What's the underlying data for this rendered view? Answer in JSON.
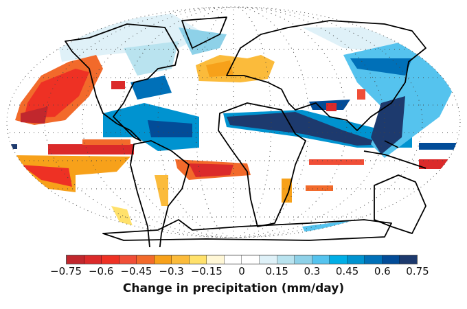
{
  "map": {
    "projection": "Robinson",
    "coastline_color": "#000000",
    "graticule": "dotted"
  },
  "colorbar": {
    "label": "Change in precipitation (mm/day)",
    "range": [
      -0.75,
      0.75
    ],
    "ticks": [
      "−0.75",
      "−0.6",
      "−0.45",
      "−0.3",
      "−0.15",
      "0",
      "0.15",
      "0.3",
      "0.45",
      "0.6",
      "0.75"
    ],
    "bin_colors": [
      "#c1272d",
      "#db2a2a",
      "#ee3124",
      "#f04e37",
      "#f26a2b",
      "#f7a11a",
      "#fbbb3b",
      "#ffe16b",
      "#fff7d6",
      "#ffffff",
      "#ffffff",
      "#dff1f8",
      "#b9e3ef",
      "#8ed1e8",
      "#55c3ee",
      "#00aee6",
      "#0093d0",
      "#0070b8",
      "#024c98",
      "#1d3a6e"
    ]
  }
}
